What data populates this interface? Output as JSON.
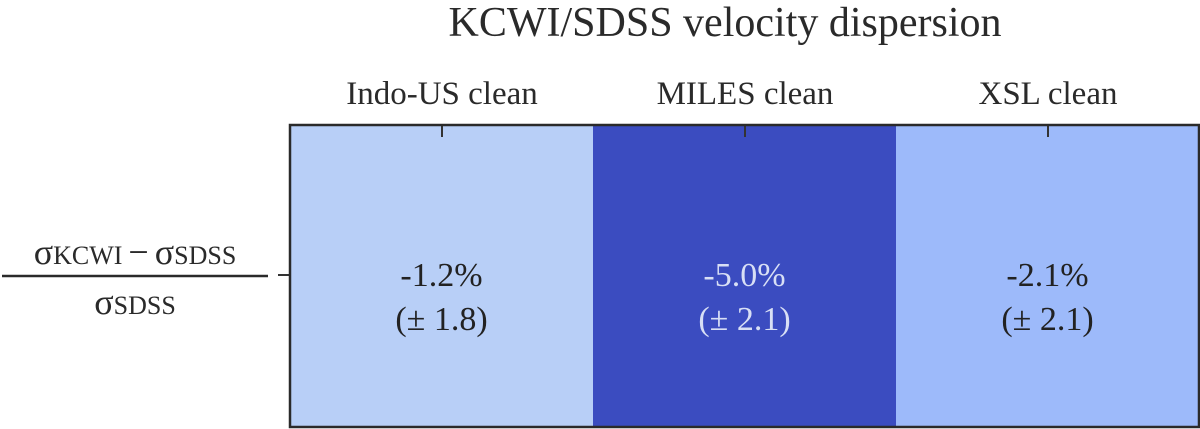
{
  "chart_data": {
    "type": "heatmap",
    "title": "KCWI/SDSS velocity dispersion",
    "columns": [
      "Indo-US clean",
      "MILES clean",
      "XSL clean"
    ],
    "row_label": {
      "numerator_sym1": "σ",
      "numerator_sub1": "KCWI",
      "minus": "−",
      "numerator_sym2": "σ",
      "numerator_sub2": "SDSS",
      "denominator_sym": "σ",
      "denominator_sub": "SDSS"
    },
    "values": [
      -1.2,
      -5.0,
      -2.1
    ],
    "errors": [
      1.8,
      2.1,
      2.1
    ],
    "value_labels": [
      "-1.2%",
      "-5.0%",
      "-2.1%"
    ],
    "error_labels": [
      "(± 1.8)",
      "(± 2.1)",
      "(± 2.1)"
    ],
    "cell_colors": [
      "#b8cff7",
      "#3b4cc0",
      "#9dbafa"
    ],
    "text_colors": [
      "#222222",
      "#d8dff5",
      "#222222"
    ]
  }
}
